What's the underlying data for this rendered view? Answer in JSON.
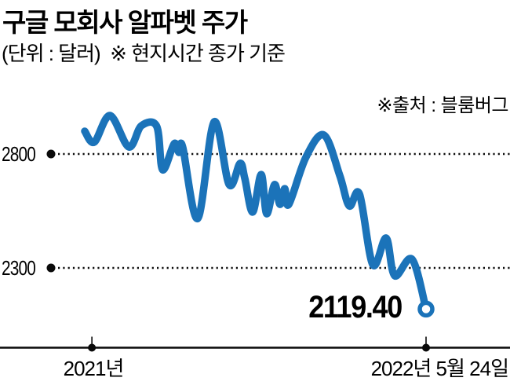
{
  "header": {
    "title": "구글 모회사 알파벳 주가",
    "subtitle": "(단위 : 달러)  ※ 현지시간 종가 기준",
    "source": "※출처 : 블룸버그"
  },
  "chart_data": {
    "type": "line",
    "title": "구글 모회사 알파벳 주가",
    "unit_label": "(단위 : 달러)",
    "basis_note": "※ 현지시간 종가 기준",
    "source": "※출처 : 블룸버그",
    "line_color": "#1b73b9",
    "grid_color": "#0a0a0a",
    "axis_color": "#0a0a0a",
    "grid": "dotted-horizontal",
    "legend": "none",
    "ylim": [
      2050,
      3050
    ],
    "y_ticks": [
      2800,
      2300
    ],
    "y_tick_labels": [
      "2800",
      "2300"
    ],
    "x_tick_labels": [
      "2021년",
      "2022년 5월 24일"
    ],
    "x_tick_positions": [
      0.021,
      1.0
    ],
    "end_value": 2119.4,
    "end_value_label": "2119.40",
    "series": [
      {
        "name": "알파벳 주가",
        "points": [
          [
            0.0,
            2900
          ],
          [
            0.028,
            2852
          ],
          [
            0.074,
            2969
          ],
          [
            0.129,
            2831
          ],
          [
            0.166,
            2924
          ],
          [
            0.211,
            2921
          ],
          [
            0.228,
            2731
          ],
          [
            0.262,
            2845
          ],
          [
            0.276,
            2807
          ],
          [
            0.287,
            2831
          ],
          [
            0.331,
            2517
          ],
          [
            0.379,
            2941
          ],
          [
            0.423,
            2666
          ],
          [
            0.455,
            2759
          ],
          [
            0.469,
            2693
          ],
          [
            0.492,
            2545
          ],
          [
            0.517,
            2710
          ],
          [
            0.533,
            2538
          ],
          [
            0.556,
            2666
          ],
          [
            0.572,
            2579
          ],
          [
            0.586,
            2648
          ],
          [
            0.598,
            2579
          ],
          [
            0.648,
            2786
          ],
          [
            0.701,
            2883
          ],
          [
            0.747,
            2707
          ],
          [
            0.775,
            2572
          ],
          [
            0.805,
            2624
          ],
          [
            0.844,
            2314
          ],
          [
            0.883,
            2431
          ],
          [
            0.908,
            2266
          ],
          [
            0.959,
            2338
          ],
          [
            1.0,
            2119.4
          ]
        ]
      }
    ]
  }
}
